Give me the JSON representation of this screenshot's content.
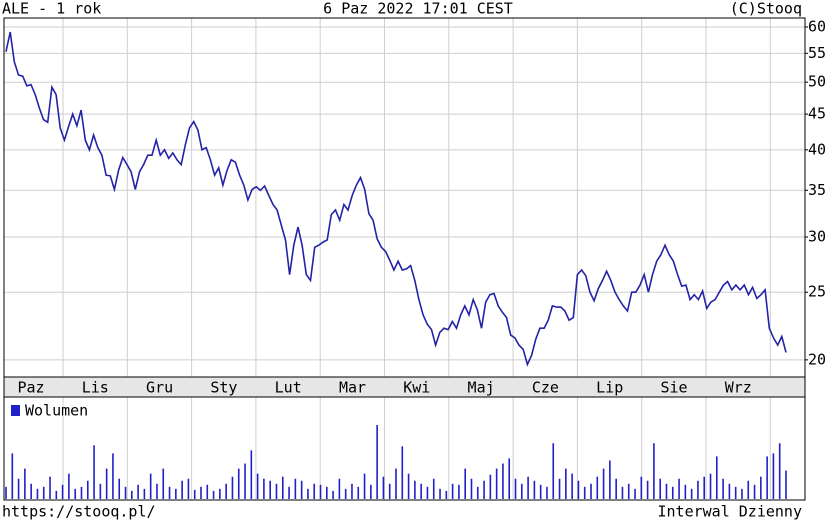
{
  "header": {
    "title": "ALE - 1 rok",
    "timestamp": "6 Paz 2022 17:01 CEST",
    "copyright": "(C)Stooq"
  },
  "chart_data": [
    {
      "type": "line",
      "color": "#2323a6",
      "log_scale": true,
      "grid": true,
      "month_labels": [
        "Paz",
        "Lis",
        "Gru",
        "Sty",
        "Lut",
        "Mar",
        "Kwi",
        "Maj",
        "Cze",
        "Lip",
        "Sie",
        "Wrz"
      ],
      "ylim": [
        18.9,
        61.8
      ],
      "yticks": [
        20,
        25,
        30,
        35,
        40,
        45,
        50,
        55,
        60
      ],
      "values": [
        55.3,
        59.0,
        53.5,
        51.2,
        51.0,
        49.4,
        49.6,
        48.0,
        45.9,
        44.2,
        43.8,
        49.2,
        48.0,
        43.0,
        41.3,
        43.2,
        45.0,
        43.3,
        45.6,
        41.3,
        40.0,
        42.0,
        40.3,
        39.3,
        36.8,
        36.7,
        35.1,
        37.4,
        39.0,
        38.1,
        37.2,
        35.1,
        37.2,
        38.1,
        39.3,
        39.3,
        41.3,
        39.3,
        40.0,
        38.9,
        39.6,
        38.7,
        38.1,
        40.7,
        43.0,
        43.9,
        42.7,
        40.0,
        40.3,
        38.7,
        36.8,
        37.7,
        35.6,
        37.4,
        38.7,
        38.4,
        36.8,
        35.6,
        33.9,
        35.1,
        35.4,
        35.0,
        35.5,
        34.4,
        33.4,
        32.8,
        31.2,
        29.7,
        26.5,
        29.2,
        31.0,
        29.2,
        26.5,
        26.0,
        29.0,
        29.2,
        29.5,
        29.7,
        32.3,
        32.8,
        31.7,
        33.4,
        32.8,
        34.4,
        35.6,
        36.5,
        35.1,
        32.4,
        31.7,
        29.8,
        29.0,
        28.6,
        27.8,
        26.9,
        27.7,
        26.9,
        27.0,
        27.3,
        26.0,
        24.4,
        23.2,
        22.5,
        22.1,
        21.0,
        21.9,
        22.2,
        22.1,
        22.7,
        22.2,
        23.2,
        23.9,
        23.2,
        24.4,
        23.6,
        22.2,
        24.2,
        24.8,
        24.9,
        23.9,
        23.4,
        23.0,
        21.7,
        21.5,
        21.0,
        20.7,
        19.7,
        20.3,
        21.4,
        22.2,
        22.2,
        22.8,
        23.9,
        23.8,
        23.8,
        23.5,
        22.8,
        23.0,
        26.5,
        26.9,
        26.4,
        25.0,
        24.3,
        25.3,
        26.0,
        26.8,
        26.0,
        25.0,
        24.4,
        23.9,
        23.5,
        25.0,
        25.0,
        25.6,
        26.5,
        25.0,
        26.5,
        27.7,
        28.3,
        29.2,
        28.3,
        27.7,
        26.5,
        25.5,
        25.6,
        24.4,
        24.8,
        24.4,
        25.1,
        23.7,
        24.2,
        24.4,
        25.0,
        25.6,
        25.9,
        25.2,
        25.6,
        25.2,
        25.6,
        24.8,
        25.4,
        24.5,
        24.8,
        25.2,
        22.2,
        21.5,
        21.0,
        21.6,
        20.5
      ]
    },
    {
      "type": "bar",
      "series": [
        {
          "name": "Wolumen",
          "color": "#2020c8",
          "values": [
            12,
            45,
            20,
            30,
            15,
            10,
            12,
            22,
            8,
            14,
            25,
            10,
            12,
            18,
            53,
            15,
            30,
            45,
            20,
            12,
            8,
            14,
            10,
            25,
            15,
            30,
            12,
            10,
            18,
            20,
            9,
            12,
            14,
            8,
            10,
            15,
            22,
            30,
            35,
            48,
            25,
            20,
            18,
            15,
            22,
            12,
            20,
            18,
            10,
            15,
            14,
            12,
            8,
            20,
            10,
            15,
            12,
            25,
            14,
            73,
            22,
            15,
            30,
            52,
            25,
            18,
            15,
            12,
            20,
            10,
            8,
            15,
            14,
            30,
            20,
            12,
            18,
            24,
            30,
            35,
            40,
            20,
            15,
            22,
            18,
            14,
            12,
            55,
            20,
            30,
            25,
            18,
            12,
            15,
            22,
            30,
            38,
            20,
            12,
            15,
            10,
            22,
            18,
            55,
            20,
            15,
            12,
            20,
            14,
            10,
            18,
            22,
            25,
            42,
            20,
            15,
            12,
            10,
            18,
            14,
            22,
            42,
            45,
            55,
            28
          ]
        }
      ]
    }
  ],
  "footer": {
    "url": "https://stooq.pl/",
    "interval": "Interwal Dzienny"
  }
}
